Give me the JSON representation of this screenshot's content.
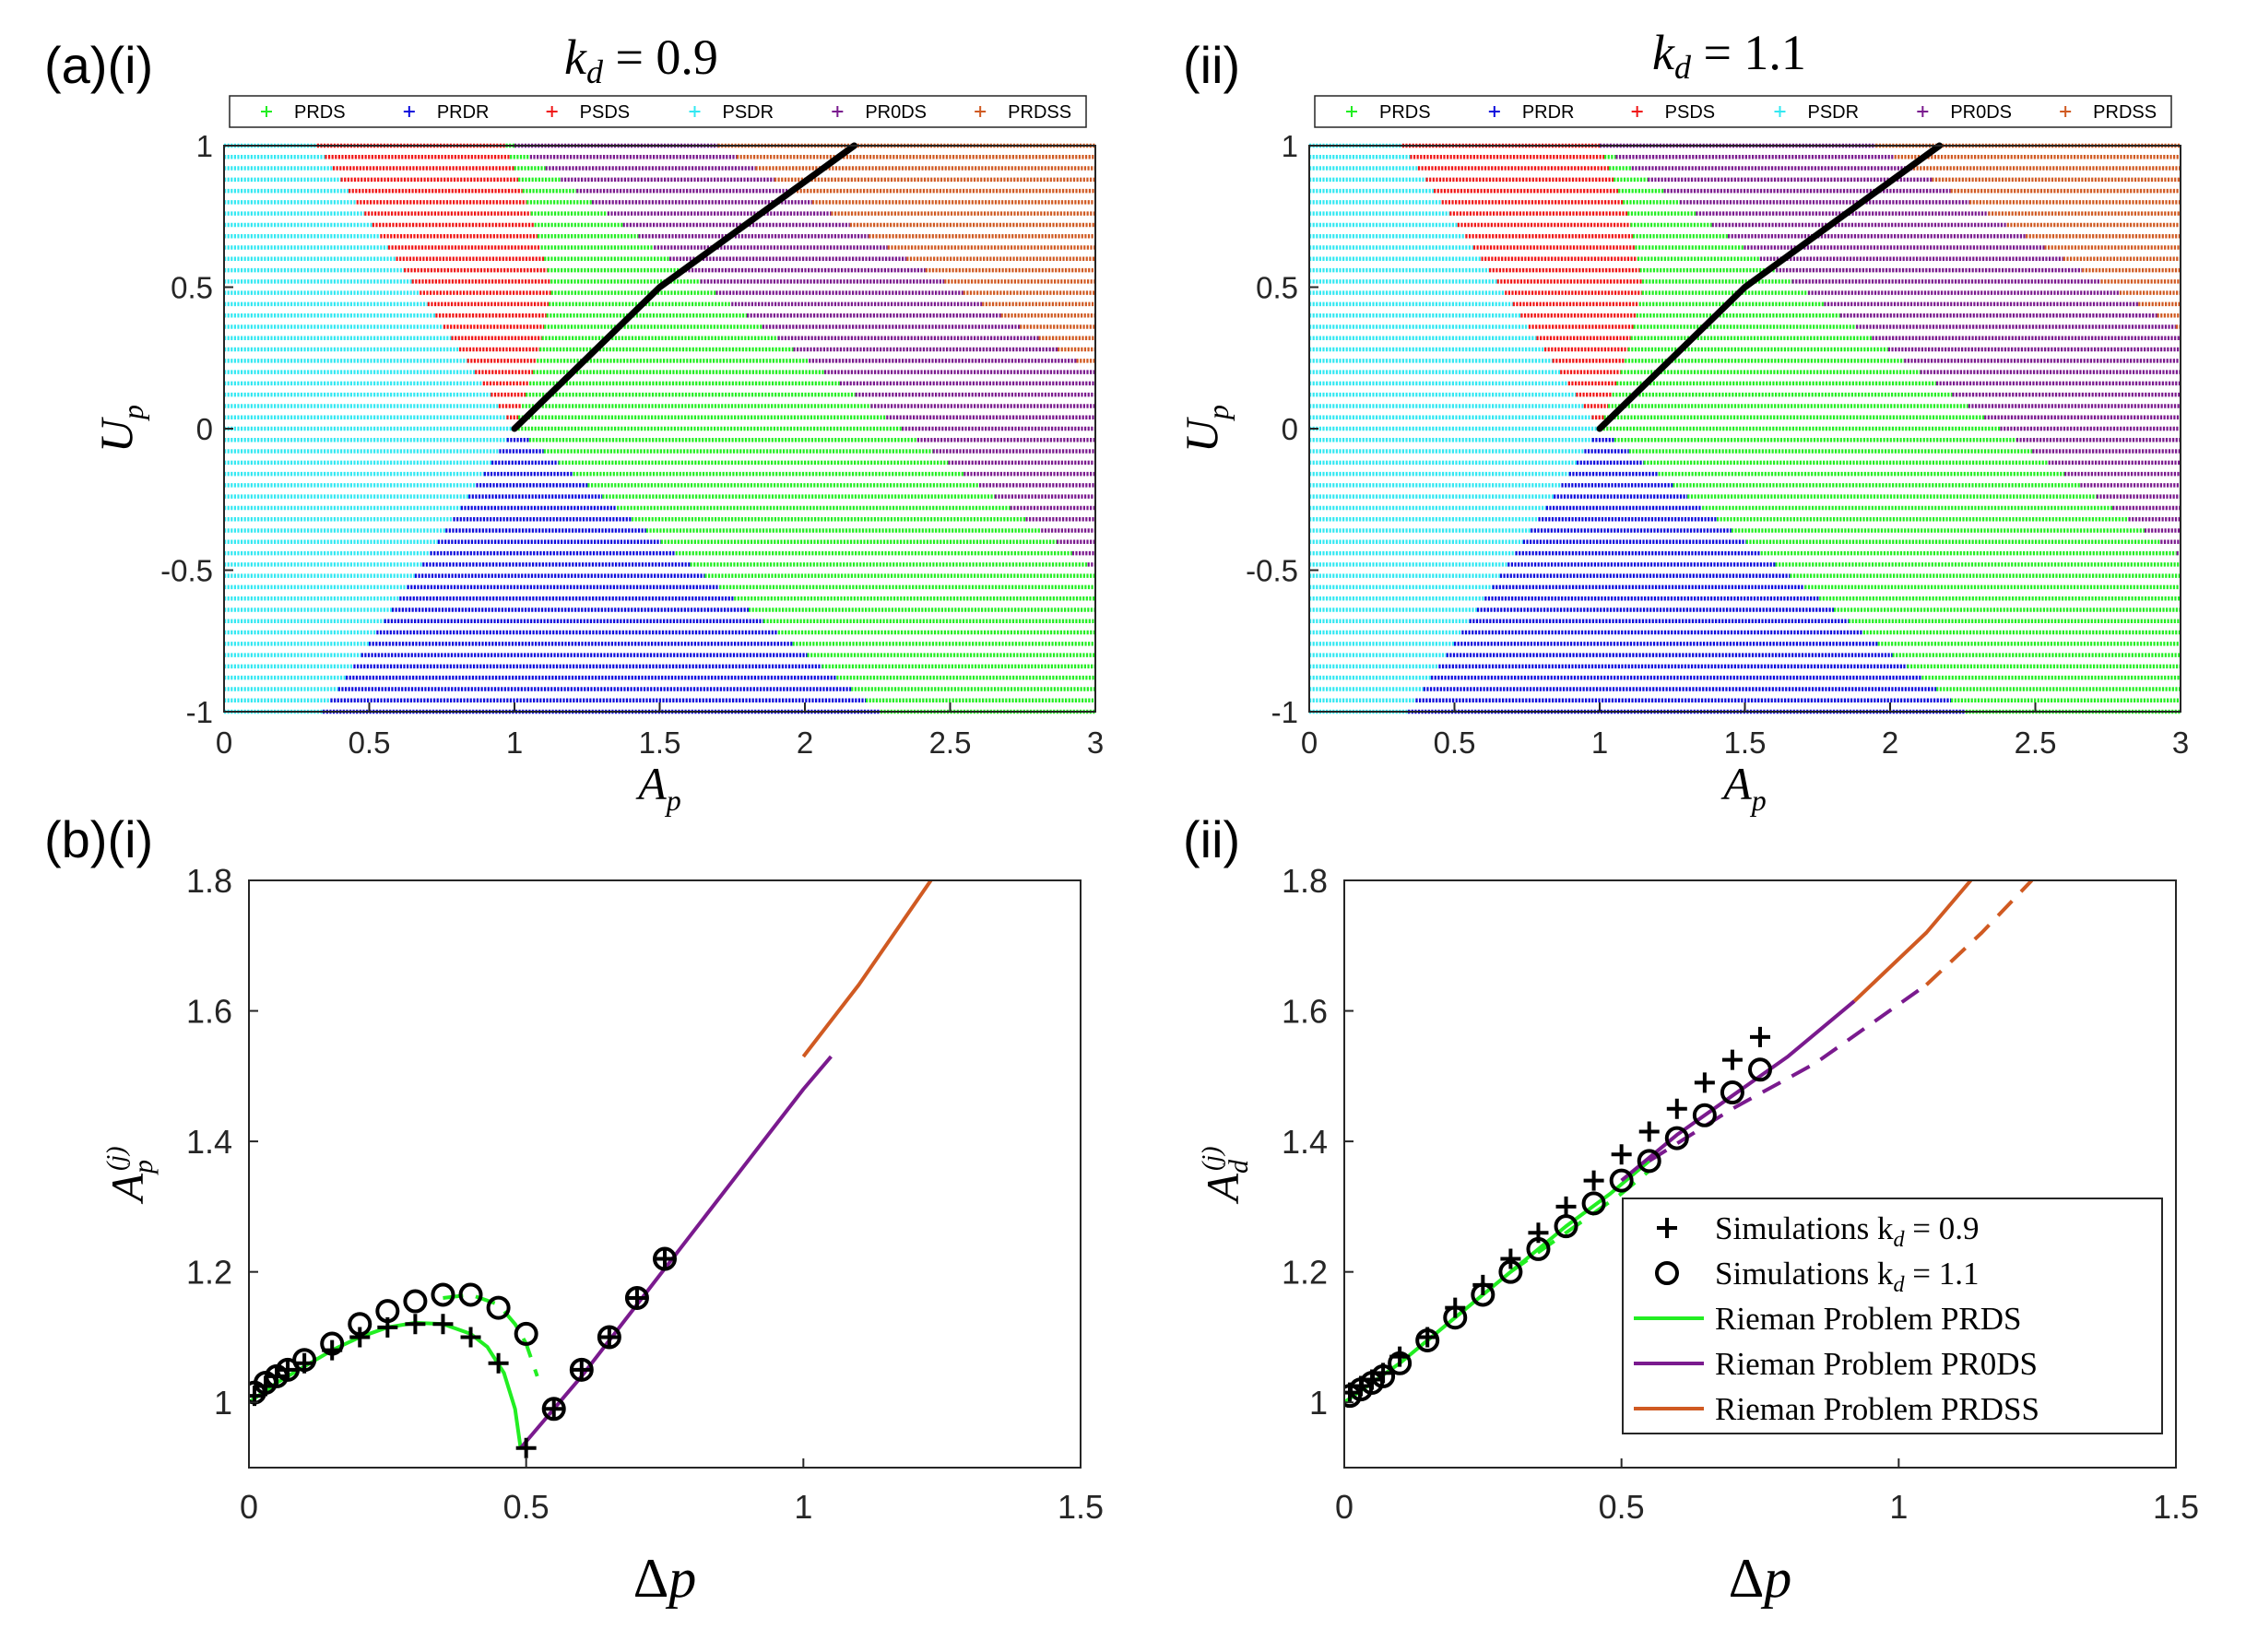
{
  "figure": {
    "top_left_label": "(a)(i)",
    "top_right_label": "(ii)",
    "bottom_left_label": "(b)(i)",
    "bottom_right_label": "(ii)"
  },
  "colors": {
    "PRDS": "#22ee22",
    "PRDR": "#0d0ddd",
    "PSDS": "#f01616",
    "PSDR": "#33e8f2",
    "PR0DS": "#7a1a8e",
    "PRDSS": "#d05a22",
    "black_line": "#000000"
  },
  "chart_data": [
    {
      "id": "a_i",
      "type": "scatter",
      "title_prefix": "k",
      "title_sub": "d",
      "title_suffix": " = 0.9",
      "kd": 0.9,
      "xlabel": "A",
      "xlabel_sub": "p",
      "ylabel": "U",
      "ylabel_sub": "p",
      "xlim": [
        0,
        3
      ],
      "ylim": [
        -1,
        1
      ],
      "xticks": [
        "0",
        "0.5",
        "1",
        "1.5",
        "2",
        "2.5",
        "3"
      ],
      "yticks": [
        "-1",
        "-0.5",
        "0",
        "0.5",
        "1"
      ],
      "legend": [
        "PRDS",
        "PRDR",
        "PSDS",
        "PSDR",
        "PR0DS",
        "PRDSS"
      ],
      "region_boundaries": {
        "psdr_edge_lower": [
          [
            -1,
            0.34
          ],
          [
            0,
            1.0
          ]
        ],
        "psdr_edge_upper": [
          [
            0,
            1.0
          ],
          [
            1,
            0.32
          ]
        ],
        "prdr_edge": [
          [
            -1,
            2.26
          ],
          [
            0,
            1.0
          ]
        ],
        "psds_edge": [
          [
            0,
            1.0
          ],
          [
            0.25,
            1.08
          ],
          [
            0.5,
            1.13
          ],
          [
            0.75,
            1.06
          ],
          [
            1,
            0.97
          ]
        ],
        "pr0ds_edge": [
          [
            -0.5,
            3.0
          ],
          [
            1,
            1.0
          ]
        ],
        "prdss_edge": [
          [
            0.2,
            3.0
          ],
          [
            1,
            1.7
          ]
        ]
      },
      "black_line": [
        [
          1.0,
          0.0
        ],
        [
          1.5,
          0.5
        ],
        [
          2.17,
          1.0
        ]
      ]
    },
    {
      "id": "a_ii",
      "type": "scatter",
      "title_prefix": "k",
      "title_sub": "d",
      "title_suffix": " = 1.1",
      "kd": 1.1,
      "xlabel": "A",
      "xlabel_sub": "p",
      "ylabel": "U",
      "ylabel_sub": "p",
      "xlim": [
        0,
        3
      ],
      "ylim": [
        -1,
        1
      ],
      "xticks": [
        "0",
        "0.5",
        "1",
        "1.5",
        "2",
        "2.5",
        "3"
      ],
      "yticks": [
        "-1",
        "-0.5",
        "0",
        "0.5",
        "1"
      ],
      "legend": [
        "PRDS",
        "PRDR",
        "PSDS",
        "PSDR",
        "PR0DS",
        "PRDSS"
      ],
      "region_boundaries": {
        "psdr_edge_lower": [
          [
            -1,
            0.34
          ],
          [
            0,
            1.0
          ]
        ],
        "psdr_edge_upper": [
          [
            0,
            1.0
          ],
          [
            1,
            0.32
          ]
        ],
        "prdr_edge": [
          [
            -1,
            2.26
          ],
          [
            0,
            1.0
          ]
        ],
        "psds_edge": [
          [
            0,
            1.0
          ],
          [
            0.25,
            1.09
          ],
          [
            0.5,
            1.15
          ],
          [
            0.75,
            1.1
          ],
          [
            1,
            1.0
          ]
        ],
        "pr0ds_edge": [
          [
            -0.45,
            3.0
          ],
          [
            1,
            1.0
          ]
        ],
        "prdss_edge": [
          [
            0.35,
            3.0
          ],
          [
            1,
            1.95
          ]
        ]
      },
      "black_line": [
        [
          1.0,
          0.0
        ],
        [
          1.5,
          0.5
        ],
        [
          2.17,
          1.0
        ]
      ]
    },
    {
      "id": "b_i",
      "type": "line",
      "xlabel": "Δp",
      "ylabel": "A",
      "ylabel_sub": "p",
      "ylabel_sup": "(j)",
      "xlim": [
        0,
        1.5
      ],
      "ylim": [
        0.9,
        1.8
      ],
      "xticks": [
        "0",
        "0.5",
        "1",
        "1.5"
      ],
      "yticks": [
        "1",
        "1.2",
        "1.4",
        "1.6",
        "1.8"
      ],
      "series": [
        {
          "name": "Simulations kd = 0.9",
          "marker": "plus",
          "x": [
            0.01,
            0.03,
            0.05,
            0.07,
            0.1,
            0.15,
            0.2,
            0.25,
            0.3,
            0.35,
            0.4,
            0.45,
            0.5,
            0.55,
            0.6,
            0.65,
            0.7,
            0.75
          ],
          "y": [
            1.01,
            1.025,
            1.04,
            1.05,
            1.06,
            1.08,
            1.1,
            1.115,
            1.12,
            1.12,
            1.1,
            1.06,
            0.93,
            0.99,
            1.05,
            1.1,
            1.16,
            1.22
          ]
        },
        {
          "name": "Simulations kd = 1.1",
          "marker": "circle",
          "x": [
            0.01,
            0.03,
            0.05,
            0.07,
            0.1,
            0.15,
            0.2,
            0.25,
            0.3,
            0.35,
            0.4,
            0.45,
            0.5,
            0.55,
            0.6,
            0.65,
            0.7,
            0.75
          ],
          "y": [
            1.015,
            1.03,
            1.04,
            1.05,
            1.065,
            1.09,
            1.12,
            1.14,
            1.155,
            1.165,
            1.165,
            1.145,
            1.105,
            0.99,
            1.05,
            1.1,
            1.16,
            1.22
          ]
        },
        {
          "name": "Rieman Problem PRDS kd = 0.9",
          "style": "solid",
          "color": "PRDS",
          "x": [
            0,
            0.05,
            0.1,
            0.15,
            0.2,
            0.25,
            0.3,
            0.35,
            0.4,
            0.43,
            0.46,
            0.48,
            0.49
          ],
          "y": [
            1.0,
            1.03,
            1.055,
            1.08,
            1.1,
            1.115,
            1.122,
            1.12,
            1.105,
            1.085,
            1.045,
            0.99,
            0.93
          ]
        },
        {
          "name": "Rieman Problem PRDS kd = 1.1",
          "style": "dashed",
          "color": "PRDS",
          "x": [
            0.35,
            0.4,
            0.45,
            0.48,
            0.5,
            0.52
          ],
          "y": [
            1.16,
            1.165,
            1.15,
            1.12,
            1.09,
            1.04
          ]
        },
        {
          "name": "Rieman Problem PR0DS",
          "style": "solid",
          "color": "PR0DS",
          "x": [
            0.49,
            0.6,
            0.8,
            1.0,
            1.02,
            1.05
          ],
          "y": [
            0.93,
            1.04,
            1.26,
            1.48,
            1.5,
            1.53
          ]
        },
        {
          "name": "Rieman Problem PRDSS",
          "style": "solid",
          "color": "PRDSS",
          "x": [
            1.0,
            1.1,
            1.23
          ],
          "y": [
            1.53,
            1.64,
            1.8
          ]
        }
      ]
    },
    {
      "id": "b_ii",
      "type": "line",
      "xlabel": "Δp",
      "ylabel": "A",
      "ylabel_sub": "d",
      "ylabel_sup": "(j)",
      "xlim": [
        0,
        1.5
      ],
      "ylim": [
        0.9,
        1.8
      ],
      "xticks": [
        "0",
        "0.5",
        "1",
        "1.5"
      ],
      "yticks": [
        "1",
        "1.2",
        "1.4",
        "1.6",
        "1.8"
      ],
      "legend": [
        {
          "marker": "plus",
          "prefix": "Simulations k",
          "sub": "d",
          "suffix": " = 0.9"
        },
        {
          "marker": "circle",
          "prefix": "Simulations k",
          "sub": "d",
          "suffix": " = 1.1"
        },
        {
          "line": "PRDS",
          "prefix": "Rieman Problem PRDS",
          "sub": "",
          "suffix": ""
        },
        {
          "line": "PR0DS",
          "prefix": "Rieman Problem PR0DS",
          "sub": "",
          "suffix": ""
        },
        {
          "line": "PRDSS",
          "prefix": "Rieman Problem PRDSS",
          "sub": "",
          "suffix": ""
        }
      ],
      "series": [
        {
          "name": "Simulations kd = 0.9",
          "marker": "plus",
          "x": [
            0.01,
            0.03,
            0.05,
            0.07,
            0.1,
            0.15,
            0.2,
            0.25,
            0.3,
            0.35,
            0.4,
            0.45,
            0.5,
            0.55,
            0.6,
            0.65,
            0.7,
            0.75
          ],
          "y": [
            1.015,
            1.025,
            1.035,
            1.045,
            1.07,
            1.1,
            1.145,
            1.18,
            1.22,
            1.26,
            1.3,
            1.34,
            1.38,
            1.415,
            1.45,
            1.49,
            1.525,
            1.56
          ]
        },
        {
          "name": "Simulations kd = 1.1",
          "marker": "circle",
          "x": [
            0.01,
            0.03,
            0.05,
            0.07,
            0.1,
            0.15,
            0.2,
            0.25,
            0.3,
            0.35,
            0.4,
            0.45,
            0.5,
            0.55,
            0.6,
            0.65,
            0.7,
            0.75
          ],
          "y": [
            1.01,
            1.02,
            1.03,
            1.04,
            1.06,
            1.095,
            1.13,
            1.165,
            1.2,
            1.235,
            1.27,
            1.305,
            1.34,
            1.37,
            1.405,
            1.44,
            1.475,
            1.51
          ]
        },
        {
          "name": "Rieman Problem PRDS kd = 0.9",
          "style": "solid",
          "color": "PRDS",
          "x": [
            0,
            0.1,
            0.2,
            0.3,
            0.4,
            0.48,
            0.55
          ],
          "y": [
            1.0,
            1.06,
            1.13,
            1.2,
            1.27,
            1.32,
            1.37
          ]
        },
        {
          "name": "Rieman Problem PRDS kd = 1.1",
          "style": "dashed",
          "color": "PRDS",
          "x": [
            0.3,
            0.4,
            0.5,
            0.55
          ],
          "y": [
            1.2,
            1.26,
            1.32,
            1.355
          ]
        },
        {
          "name": "Rieman Problem PR0DS kd = 0.9",
          "style": "solid",
          "color": "PR0DS",
          "x": [
            0.5,
            0.6,
            0.7,
            0.8,
            0.92
          ],
          "y": [
            1.34,
            1.41,
            1.47,
            1.53,
            1.615
          ]
        },
        {
          "name": "Rieman Problem PR0DS kd = 1.1",
          "style": "dashed",
          "color": "PR0DS",
          "x": [
            0.55,
            0.7,
            0.85,
            1.05
          ],
          "y": [
            1.37,
            1.45,
            1.52,
            1.64
          ]
        },
        {
          "name": "Rieman Problem PRDSS kd = 0.9",
          "style": "solid",
          "color": "PRDSS",
          "x": [
            0.92,
            1.05,
            1.13
          ],
          "y": [
            1.615,
            1.72,
            1.8
          ]
        },
        {
          "name": "Rieman Problem PRDSS kd = 1.1",
          "style": "dashed",
          "color": "PRDSS",
          "x": [
            1.05,
            1.15,
            1.24
          ],
          "y": [
            1.64,
            1.72,
            1.8
          ]
        }
      ]
    }
  ]
}
